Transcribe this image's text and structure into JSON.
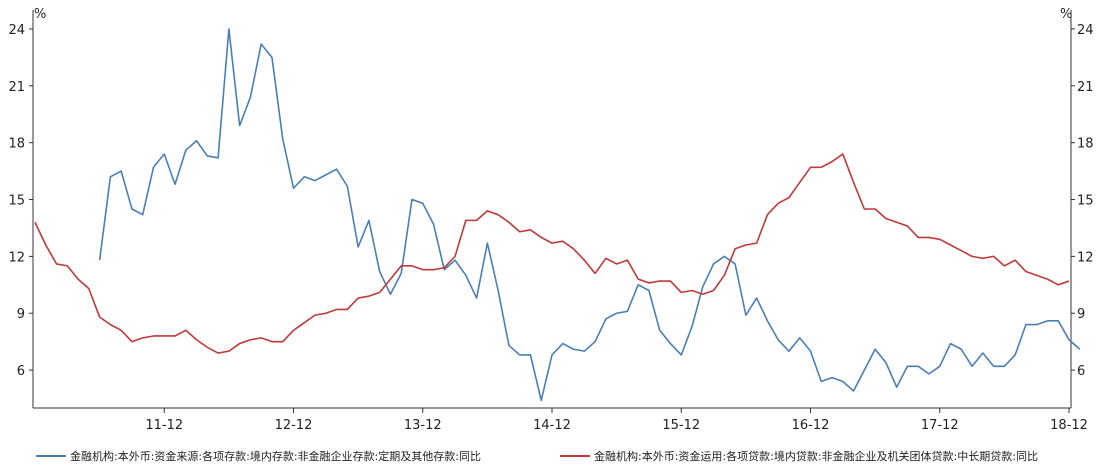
{
  "chart_data": {
    "type": "line",
    "y_unit_left": "%",
    "y_unit_right": "%",
    "ylim": [
      4,
      25
    ],
    "yticks": [
      6,
      9,
      12,
      15,
      18,
      21,
      24
    ],
    "x_tick_labels": [
      "11-12",
      "12-12",
      "13-12",
      "14-12",
      "15-12",
      "16-12",
      "17-12",
      "18-12"
    ],
    "x_tick_index": [
      12,
      24,
      36,
      48,
      60,
      72,
      84,
      96
    ],
    "x_count": 97,
    "grid": false,
    "legend_placement": "bottom",
    "series": [
      {
        "name": "金融机构:本外币:资金来源:各项存款:境内存款:非金融企业存款:定期及其他存款:同比",
        "color": "#4a7fb5",
        "x_start_index": 6,
        "values": [
          11.8,
          16.2,
          16.5,
          14.5,
          14.2,
          16.7,
          17.4,
          15.8,
          17.6,
          18.1,
          17.3,
          17.2,
          24.0,
          18.9,
          20.4,
          23.2,
          22.5,
          18.2,
          15.6,
          16.2,
          16.0,
          16.3,
          16.6,
          15.7,
          12.5,
          13.9,
          11.2,
          10.0,
          11.1,
          15.0,
          14.8,
          13.7,
          11.3,
          11.8,
          11.0,
          9.8,
          12.7,
          10.2,
          7.3,
          6.8,
          6.8,
          4.4,
          6.8,
          7.4,
          7.1,
          7.0,
          7.5,
          8.7,
          9.0,
          9.1,
          10.5,
          10.2,
          8.1,
          7.4,
          6.8,
          8.3,
          10.4,
          11.6,
          12.0,
          11.6,
          8.9,
          9.8,
          8.6,
          7.6,
          7.0,
          7.7,
          7.0,
          5.4,
          5.6,
          5.4,
          4.9,
          6.0,
          7.1,
          6.4,
          5.1,
          6.2,
          6.2,
          5.8,
          6.2,
          7.4,
          7.1,
          6.2,
          6.9,
          6.2,
          6.2,
          6.8,
          8.4,
          8.4,
          8.6,
          8.6,
          7.6,
          7.1
        ]
      },
      {
        "name": "金融机构:本外币:资金运用:各项贷款:境内贷款:非金融企业及机关团体贷款:中长期贷款:同比",
        "color": "#c0393b",
        "x_start_index": 0,
        "values": [
          13.8,
          12.6,
          11.6,
          11.5,
          10.8,
          10.3,
          8.8,
          8.4,
          8.1,
          7.5,
          7.7,
          7.8,
          7.8,
          7.8,
          8.1,
          7.6,
          7.2,
          6.9,
          7.0,
          7.4,
          7.6,
          7.7,
          7.5,
          7.5,
          8.1,
          8.5,
          8.9,
          9.0,
          9.2,
          9.2,
          9.8,
          9.9,
          10.1,
          10.8,
          11.5,
          11.5,
          11.3,
          11.3,
          11.4,
          12.0,
          13.9,
          13.9,
          14.4,
          14.2,
          13.8,
          13.3,
          13.4,
          13.0,
          12.7,
          12.8,
          12.4,
          11.8,
          11.1,
          11.9,
          11.6,
          11.8,
          10.8,
          10.6,
          10.7,
          10.7,
          10.1,
          10.2,
          10.0,
          10.2,
          11.0,
          12.4,
          12.6,
          12.7,
          14.2,
          14.8,
          15.1,
          15.9,
          16.7,
          16.7,
          17.0,
          17.4,
          15.9,
          14.5,
          14.5,
          14.0,
          13.8,
          13.6,
          13.0,
          13.0,
          12.9,
          12.6,
          12.3,
          12.0,
          11.9,
          12.0,
          11.5,
          11.8,
          11.2,
          11.0,
          10.8,
          10.5,
          10.7
        ]
      }
    ]
  }
}
